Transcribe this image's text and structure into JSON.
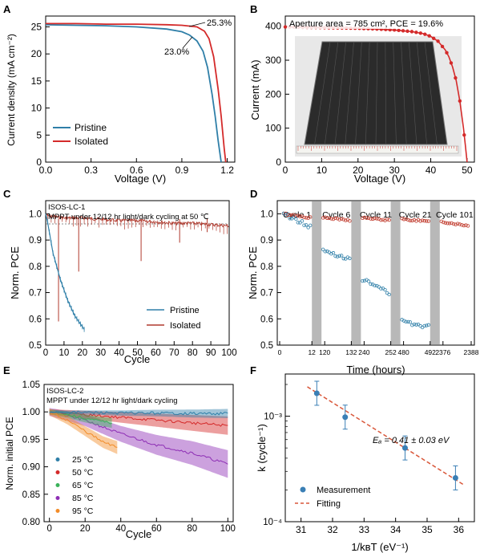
{
  "chart_data": [
    {
      "panel": "A",
      "type": "line",
      "xlabel": "Voltage (V)",
      "ylabel": "Current density (mA cm⁻²)",
      "xlim": [
        0,
        1.25
      ],
      "ylim": [
        0,
        27
      ],
      "xticks": [
        "0.0",
        "0.3",
        "0.6",
        "0.9",
        "1.2"
      ],
      "yticks": [
        "0",
        "5",
        "10",
        "15",
        "20",
        "25"
      ],
      "annotations": [
        "25.3%",
        "23.0%"
      ],
      "legend_position": "bottom-left",
      "series": [
        {
          "name": "Pristine",
          "color": "#2f7fa8",
          "x": [
            0,
            0.2,
            0.4,
            0.6,
            0.8,
            0.9,
            0.95,
            1.0,
            1.04,
            1.07,
            1.1,
            1.12,
            1.14,
            1.16
          ],
          "y": [
            25.4,
            25.3,
            25.2,
            25.0,
            24.6,
            24.1,
            23.5,
            22.4,
            20.5,
            17.5,
            12.5,
            8.5,
            4.0,
            0
          ]
        },
        {
          "name": "Isolated",
          "color": "#d42a2a",
          "x": [
            0,
            0.2,
            0.4,
            0.6,
            0.8,
            0.9,
            1.0,
            1.05,
            1.08,
            1.11,
            1.14,
            1.16,
            1.18,
            1.19
          ],
          "y": [
            25.6,
            25.6,
            25.5,
            25.5,
            25.4,
            25.3,
            25.0,
            24.2,
            22.8,
            19.5,
            13.5,
            8.5,
            2.5,
            0
          ]
        }
      ]
    },
    {
      "panel": "B",
      "type": "line",
      "xlabel": "Voltage (V)",
      "ylabel": "Current (mA)",
      "xlim": [
        0,
        52
      ],
      "ylim": [
        0,
        430
      ],
      "xticks": [
        "0",
        "10",
        "20",
        "30",
        "40",
        "50"
      ],
      "yticks": [
        "0",
        "100",
        "200",
        "300",
        "400"
      ],
      "annotations": [
        "Aperture area = 785 cm², PCE = 19.6%"
      ],
      "series": [
        {
          "name": "",
          "color": "#d42a2a",
          "x": [
            0,
            5,
            10,
            15,
            20,
            25,
            30,
            35,
            38,
            40,
            42,
            44,
            45,
            46,
            47,
            48,
            49,
            49.5,
            50
          ],
          "y": [
            398,
            397,
            396,
            395,
            394,
            392,
            389,
            384,
            378,
            370,
            356,
            330,
            310,
            280,
            240,
            180,
            100,
            50,
            0
          ]
        }
      ]
    },
    {
      "panel": "C",
      "type": "line",
      "title": "ISOS-LC-1",
      "subtitle": "MPPT under 12/12 hr light/dark cycling at 50 °C",
      "xlabel": "Cycle",
      "ylabel": "Norm. PCE",
      "xlim": [
        0,
        100
      ],
      "ylim": [
        0.5,
        1.05
      ],
      "xticks": [
        "0",
        "10",
        "20",
        "30",
        "40",
        "50",
        "60",
        "70",
        "80",
        "90",
        "100"
      ],
      "yticks": [
        "0.5",
        "0.6",
        "0.7",
        "0.8",
        "0.9",
        "1.0"
      ],
      "legend_position": "bottom-right",
      "series": [
        {
          "name": "Pristine",
          "color": "#2f7fa8",
          "x": [
            0,
            1,
            2,
            3,
            4,
            6,
            8,
            10,
            12,
            14,
            16,
            18,
            20,
            21
          ],
          "y": [
            1.0,
            0.97,
            0.93,
            0.89,
            0.85,
            0.8,
            0.75,
            0.71,
            0.67,
            0.64,
            0.61,
            0.59,
            0.57,
            0.56
          ]
        },
        {
          "name": "Isolated",
          "color": "#b03a2e",
          "x": [
            0,
            10,
            20,
            30,
            40,
            50,
            60,
            70,
            80,
            90,
            100
          ],
          "y": [
            1.0,
            0.99,
            0.99,
            0.985,
            0.98,
            0.98,
            0.975,
            0.97,
            0.97,
            0.965,
            0.96
          ]
        }
      ]
    },
    {
      "panel": "D",
      "type": "scatter",
      "xlabel": "Time (hours)",
      "ylabel": "Norm. PCE",
      "ylim": [
        0.5,
        1.05
      ],
      "yticks": [
        "0.5",
        "0.6",
        "0.7",
        "0.8",
        "0.9",
        "1.0"
      ],
      "xticks": [
        "0",
        "12",
        "120",
        "132",
        "240",
        "252",
        "480",
        "492",
        "2376",
        "2388"
      ],
      "cycle_labels": [
        "Cycle 1",
        "Cycle 6",
        "Cycle 11",
        "Cycle 21",
        "Cycle 101"
      ],
      "segments": [
        {
          "label": "Cycle 1",
          "isolated": [
            1.0,
            0.985
          ],
          "pristine": [
            1.0,
            0.95
          ]
        },
        {
          "label": "Cycle 6",
          "isolated": [
            0.985,
            0.975
          ],
          "pristine": [
            0.86,
            0.83
          ]
        },
        {
          "label": "Cycle 11",
          "isolated": [
            0.985,
            0.975
          ],
          "pristine": [
            0.75,
            0.7
          ]
        },
        {
          "label": "Cycle 21",
          "isolated": [
            0.98,
            0.97
          ],
          "pristine": [
            0.59,
            0.57
          ]
        },
        {
          "label": "Cycle 101",
          "isolated": [
            0.97,
            0.955
          ],
          "pristine": null
        }
      ]
    },
    {
      "panel": "E",
      "type": "line",
      "title": "ISOS-LC-2",
      "subtitle": "MPPT under 12/12 hr light/dark cycling",
      "xlabel": "Cycle",
      "ylabel": "Norm. initial PCE",
      "xlim": [
        0,
        100
      ],
      "ylim": [
        0.8,
        1.05
      ],
      "xticks": [
        "0",
        "20",
        "40",
        "60",
        "80",
        "100"
      ],
      "yticks": [
        "0.80",
        "0.85",
        "0.90",
        "0.95",
        "1.00",
        "1.05"
      ],
      "legend_position": "bottom-left",
      "series": [
        {
          "name": "25 °C",
          "color": "#2f7fa8",
          "x": [
            0,
            20,
            40,
            60,
            80,
            100
          ],
          "y": [
            1.0,
            0.999,
            0.998,
            0.998,
            0.997,
            0.997
          ]
        },
        {
          "name": "50 °C",
          "color": "#d42a2a",
          "x": [
            0,
            20,
            40,
            60,
            80,
            100
          ],
          "y": [
            1.0,
            0.995,
            0.99,
            0.985,
            0.98,
            0.975
          ]
        },
        {
          "name": "65 °C",
          "color": "#3bb25a",
          "x": [
            0,
            10,
            20,
            30,
            35
          ],
          "y": [
            1.0,
            0.995,
            0.988,
            0.982,
            0.98
          ]
        },
        {
          "name": "85 °C",
          "color": "#8e2fb5",
          "x": [
            0,
            20,
            40,
            60,
            80,
            100
          ],
          "y": [
            1.0,
            0.985,
            0.96,
            0.94,
            0.925,
            0.905
          ]
        },
        {
          "name": "95 °C",
          "color": "#f28c28",
          "x": [
            0,
            10,
            20,
            30,
            38
          ],
          "y": [
            1.0,
            0.985,
            0.965,
            0.945,
            0.935
          ]
        }
      ]
    },
    {
      "panel": "F",
      "type": "scatter",
      "xlabel": "1/kʙT (eV⁻¹)",
      "ylabel": "k (cycle⁻¹)",
      "xlim": [
        30.5,
        36.5
      ],
      "ylim_log10": [
        -4,
        -2.6
      ],
      "xticks": [
        "31",
        "32",
        "33",
        "34",
        "35",
        "36"
      ],
      "yticks": [
        "10⁻⁴",
        "10⁻³"
      ],
      "annotation": "Eₐ = 0.41 ± 0.03 eV",
      "legend_position": "bottom-left",
      "series": [
        {
          "name": "Measurement",
          "color": "#3a7fb5",
          "x": [
            31.5,
            32.4,
            34.3,
            35.9
          ],
          "y": [
            0.00165,
            0.00098,
            0.0005,
            0.00026
          ]
        },
        {
          "name": "Fitting",
          "color": "#d9573a",
          "x": [
            31.2,
            36.2
          ],
          "y": [
            0.0019,
            0.00022
          ]
        }
      ]
    }
  ],
  "panel_labels": [
    "A",
    "B",
    "C",
    "D",
    "E",
    "F"
  ],
  "text": {
    "a_xlabel": "Voltage (V)",
    "a_ylabel": "Current density (mA cm⁻²)",
    "a_ann1": "25.3%",
    "a_ann2": "23.0%",
    "a_leg1": "Pristine",
    "a_leg2": "Isolated",
    "b_xlabel": "Voltage (V)",
    "b_ylabel": "Current (mA)",
    "b_ann": "Aperture area = 785 cm², PCE = 19.6%",
    "c_title": "ISOS-LC-1",
    "c_subtitle": "MPPT under 12/12 hr light/dark cycling at 50 ℃",
    "c_xlabel": "Cycle",
    "c_ylabel": "Norm. PCE",
    "c_leg1": "Pristine",
    "c_leg2": "Isolated",
    "d_xlabel": "Time (hours)",
    "d_ylabel": "Norm. PCE",
    "e_title": "ISOS-LC-2",
    "e_subtitle": "MPPT under 12/12 hr light/dark cycling",
    "e_xlabel": "Cycle",
    "e_ylabel": "Norm. initial PCE",
    "f_xlabel": "1/kʙT (eV⁻¹)",
    "f_ylabel": "k (cycle⁻¹)",
    "f_ann": "Eₐ = 0.41 ± 0.03 eV",
    "f_leg1": "Measurement",
    "f_leg2": "Fitting"
  }
}
